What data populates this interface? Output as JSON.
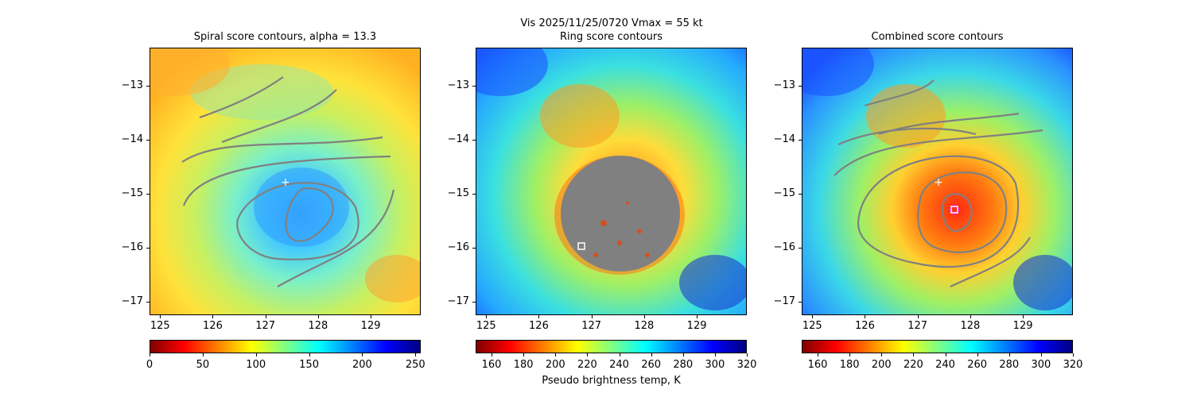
{
  "suptitle": "Vis  2025/11/25/0720    Vmax = 55 kt",
  "panels": [
    {
      "title": "Spiral score contours, alpha = 13.3",
      "cbar_ticks": [
        "0",
        "50",
        "100",
        "150",
        "200",
        "250"
      ],
      "cbar_range": [
        0,
        255
      ],
      "cbar_label": ""
    },
    {
      "title": "Ring score contours",
      "cbar_ticks": [
        "160",
        "180",
        "200",
        "220",
        "240",
        "260",
        "280",
        "300",
        "320"
      ],
      "cbar_range": [
        150,
        320
      ],
      "cbar_label": "Pseudo brightness temp, K"
    },
    {
      "title": "Combined score contours",
      "cbar_ticks": [
        "160",
        "180",
        "200",
        "220",
        "240",
        "260",
        "280",
        "300",
        "320"
      ],
      "cbar_range": [
        150,
        320
      ],
      "cbar_label": ""
    }
  ],
  "axes": {
    "x_ticks": [
      "125",
      "126",
      "127",
      "128",
      "129"
    ],
    "y_ticks": [
      "−13",
      "−14",
      "−15",
      "−16",
      "−17"
    ],
    "xlim": [
      124.8,
      129.95
    ],
    "ylim": [
      -17.25,
      -12.3
    ]
  },
  "chart_data": [
    {
      "type": "heatmap",
      "title": "Spiral score contours, alpha = 13.3",
      "xlim": [
        124.8,
        129.95
      ],
      "ylim": [
        -17.25,
        -12.3
      ],
      "colorbar": {
        "min": 0,
        "max": 255,
        "colormap": "jet_r"
      },
      "markers": [
        {
          "kind": "plus",
          "x": 127.35,
          "y": -14.78
        }
      ]
    },
    {
      "type": "heatmap",
      "title": "Ring score contours",
      "xlim": [
        124.8,
        129.95
      ],
      "ylim": [
        -17.25,
        -12.3
      ],
      "colorbar": {
        "min": 150,
        "max": 320,
        "colormap": "jet_r",
        "label": "Pseudo brightness temp, K"
      },
      "markers": [
        {
          "kind": "square",
          "x": 126.8,
          "y": -15.97
        }
      ]
    },
    {
      "type": "heatmap",
      "title": "Combined score contours",
      "xlim": [
        124.8,
        129.95
      ],
      "ylim": [
        -17.25,
        -12.3
      ],
      "colorbar": {
        "min": 150,
        "max": 320,
        "colormap": "jet_r"
      },
      "markers": [
        {
          "kind": "plus",
          "x": 127.35,
          "y": -14.78
        },
        {
          "kind": "circle",
          "x": 127.67,
          "y": -15.27
        },
        {
          "kind": "square",
          "x": 127.67,
          "y": -15.27
        }
      ]
    }
  ]
}
